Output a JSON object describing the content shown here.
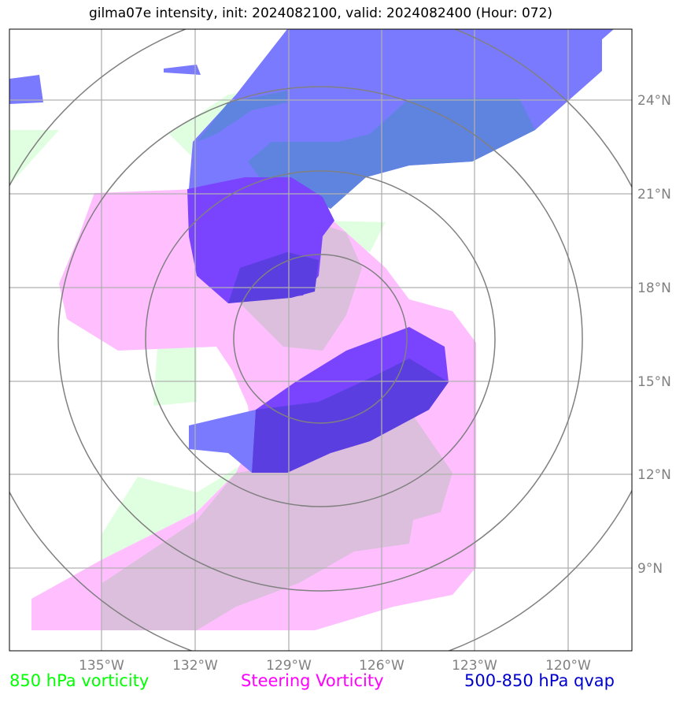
{
  "title": "gilma07e intensity, init: 2024082100, valid: 2024082400 (Hour: 072)",
  "map": {
    "lon_ticks": [
      "135°W",
      "132°W",
      "129°W",
      "126°W",
      "123°W",
      "120°W"
    ],
    "lat_ticks": [
      "24°N",
      "21°N",
      "18°N",
      "15°N",
      "12°N",
      "9°N"
    ],
    "gridlines": true,
    "range_rings": 4
  },
  "legend": {
    "vorticity_850": "850 hPa vorticity",
    "steering_vorticity": "Steering Vorticity",
    "qvap": "500-850 hPa qvap"
  },
  "colors": {
    "vorticity_850": "#00ff00",
    "steering_vorticity": "#ff00ff",
    "qvap": "#0000cc",
    "vorticity_fill": "#e0ffe0",
    "steering_fill": "#ffbfff",
    "qvap_fill": "#7a7aff",
    "qvap_dark": "#7a44ff",
    "grid": "#b0b0b0",
    "rings": "#808080"
  }
}
